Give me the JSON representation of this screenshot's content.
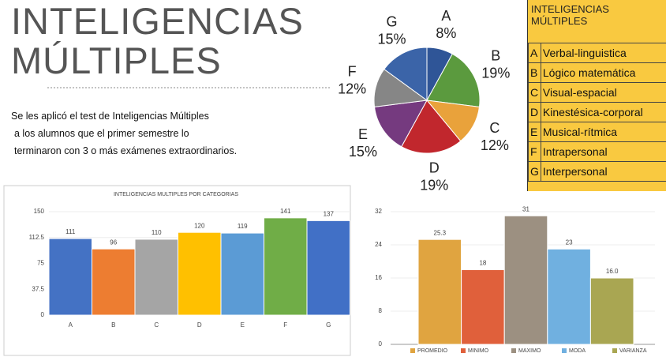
{
  "header": {
    "title": "INTELIGENCIAS MÚLTIPLES"
  },
  "text": {
    "lines": [
      "Se les aplicó el test de Inteligencias Múltiples",
      "a los alumnos que el primer semestre lo",
      "terminaron con 3 o más exámenes extraordinarios."
    ]
  },
  "table": {
    "title": "INTELIGENCIAS MÚLTIPLES",
    "rows": [
      [
        "A",
        "Verbal-linguistica"
      ],
      [
        "B",
        "Lógico matemática"
      ],
      [
        "C",
        "Visual-espacial"
      ],
      [
        "D",
        "Kinestésica-corporal"
      ],
      [
        "E",
        "Musical-rítmica"
      ],
      [
        "F",
        "Intrapersonal"
      ],
      [
        "G",
        "Interpersonal"
      ]
    ]
  },
  "chart_data": [
    {
      "type": "pie",
      "categories": [
        "A",
        "B",
        "C",
        "D",
        "E",
        "F",
        "G"
      ],
      "values": [
        8,
        19,
        12,
        19,
        15,
        12,
        15
      ],
      "value_labels": [
        "8%",
        "19%",
        "12%",
        "19%",
        "15%",
        "12%",
        "15%"
      ],
      "colors": [
        "#2f5597",
        "#5b9a3e",
        "#e9a23b",
        "#c1272d",
        "#753a7f",
        "#868686",
        "#3b64a8"
      ]
    },
    {
      "type": "bar",
      "title": "INTELIGENCIAS MULTIPLES POR CATEGORIAS",
      "categories": [
        "A",
        "B",
        "C",
        "D",
        "E",
        "F",
        "G"
      ],
      "values": [
        111,
        96,
        110,
        120,
        119,
        141,
        137
      ],
      "colors": [
        "#4472c4",
        "#ed7d31",
        "#a5a5a5",
        "#ffc000",
        "#5b9bd5",
        "#70ad47",
        "#4170c6"
      ],
      "ylim": [
        0,
        150
      ],
      "yticks": [
        0,
        37.5,
        75,
        112.5,
        150
      ]
    },
    {
      "type": "bar",
      "categories": [
        "PROMEDIO",
        "MINIMO",
        "MAXIMO",
        "MODA",
        "VARIANZA"
      ],
      "values": [
        25.3,
        18,
        31,
        23,
        16
      ],
      "value_labels": [
        "25.3",
        "18",
        "31",
        "23",
        "16.0"
      ],
      "colors": [
        "#e0a440",
        "#e0603b",
        "#9c9081",
        "#70b0e0",
        "#a9a652"
      ],
      "ylim": [
        0,
        32
      ],
      "yticks": [
        0,
        8,
        16,
        24,
        32
      ],
      "legend": "bottom"
    }
  ]
}
